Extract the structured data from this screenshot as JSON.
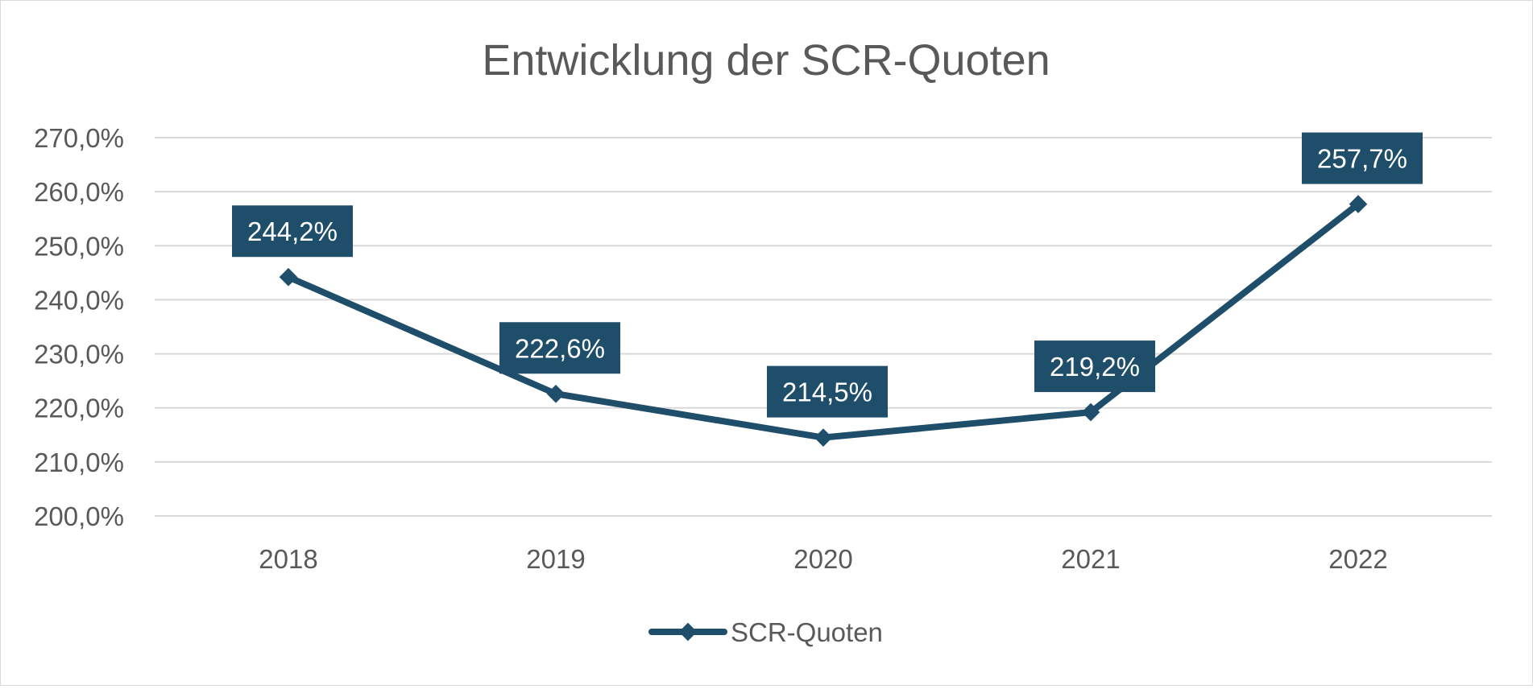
{
  "chart_data": {
    "type": "line",
    "title": "Entwicklung der SCR-Quoten",
    "categories": [
      "2018",
      "2019",
      "2020",
      "2021",
      "2022"
    ],
    "series": [
      {
        "name": "SCR-Quoten",
        "values": [
          244.2,
          222.6,
          214.5,
          219.2,
          257.7
        ],
        "labels": [
          "244,2%",
          "222,6%",
          "214,5%",
          "219,2%",
          "257,7%"
        ]
      }
    ],
    "y_ticks": [
      200,
      210,
      220,
      230,
      240,
      250,
      260,
      270
    ],
    "y_tick_labels": [
      "200,0%",
      "210,0%",
      "220,0%",
      "230,0%",
      "240,0%",
      "250,0%",
      "260,0%",
      "270,0%"
    ],
    "ylim": [
      200,
      270
    ],
    "grid": true,
    "legend_position": "bottom",
    "colors": {
      "series": "#1f4e6b",
      "label_bg": "#1f4e6b",
      "text": "#595959",
      "grid": "#d9d9d9"
    }
  }
}
